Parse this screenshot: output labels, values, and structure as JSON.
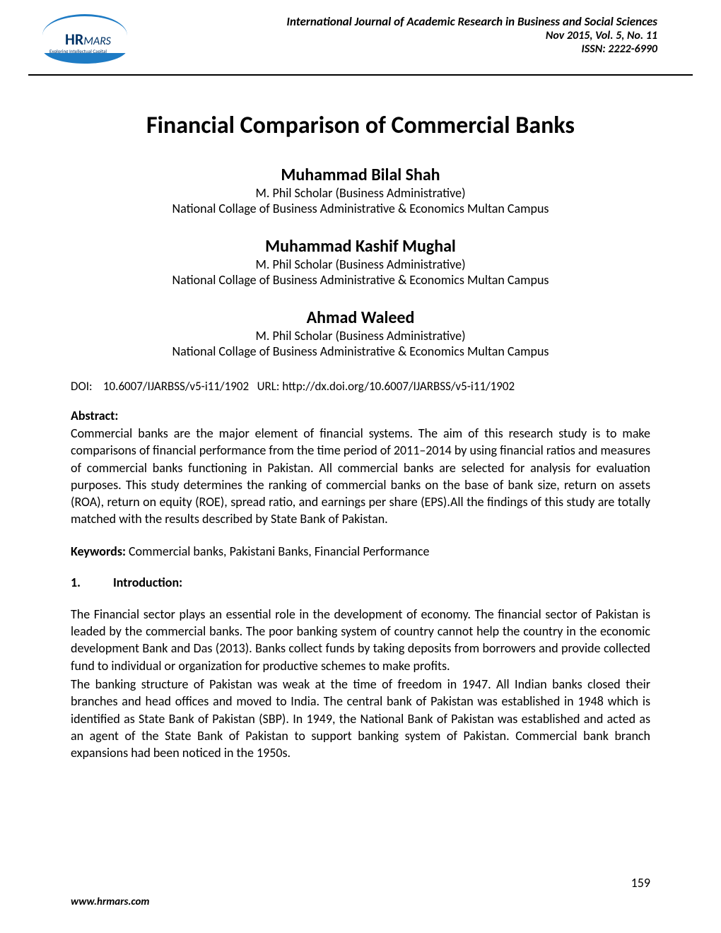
{
  "header": {
    "logo": {
      "text_main": "HR",
      "text_suffix": "MARS",
      "tagline": "Exploring Intellectual Capital"
    },
    "journal_name": "International Journal of Academic Research in Business and Social Sciences",
    "issue": "Nov 2015, Vol. 5, No. 11",
    "issn": "ISSN: 2222-6990"
  },
  "title": "Financial Comparison of Commercial Banks",
  "authors": [
    {
      "name": "Muhammad Bilal Shah",
      "role": "M. Phil Scholar (Business Administrative)",
      "affiliation": "National Collage of Business Administrative & Economics Multan Campus"
    },
    {
      "name": "Muhammad Kashif Mughal",
      "role": "M. Phil Scholar (Business Administrative)",
      "affiliation": "National Collage of Business Administrative & Economics Multan Campus"
    },
    {
      "name": "Ahmad Waleed",
      "role": "M. Phil Scholar (Business Administrative)",
      "affiliation": "National Collage of Business Administrative & Economics Multan Campus"
    }
  ],
  "doi": {
    "label": "DOI:",
    "value": "10.6007/IJARBSS/v5-i11/1902",
    "url_label": "URL:",
    "url": "http://dx.doi.org/10.6007/IJARBSS/v5-i11/1902"
  },
  "abstract": {
    "label": "Abstract:",
    "text": "Commercial banks are the major element of financial systems. The aim of this research study is to make comparisons of financial performance from the time period of 2011–2014 by using financial ratios and measures of commercial banks functioning in Pakistan. All commercial banks are selected for analysis for evaluation purposes. This study determines the ranking of commercial banks on the base of bank size, return on assets (ROA), return on equity (ROE), spread ratio, and earnings per share (EPS).All the findings of this study are totally matched with the results described by State Bank of Pakistan."
  },
  "keywords": {
    "label": "Keywords:",
    "text": "Commercial banks, Pakistani Banks, Financial Performance"
  },
  "section1": {
    "number": "1.",
    "title": "Introduction:",
    "para1": "The Financial sector plays an essential role in the development of economy. The financial sector of Pakistan is leaded by the commercial banks. The poor banking system of country cannot help the country in the economic development Bank and Das (2013). Banks collect funds by taking deposits from borrowers and provide collected fund to individual or organization for productive schemes to make profits.",
    "para2": "The banking structure of Pakistan was weak at the time of freedom in 1947. All Indian banks closed their branches and head offices and moved to India. The central bank of Pakistan was established in 1948 which is identified as State Bank of Pakistan (SBP). In 1949, the National Bank of Pakistan was established and acted as an agent of the State Bank of Pakistan to support banking system of Pakistan. Commercial bank branch expansions had been noticed in the 1950s."
  },
  "footer": {
    "url": "www.hrmars.com",
    "page_number": "159"
  }
}
